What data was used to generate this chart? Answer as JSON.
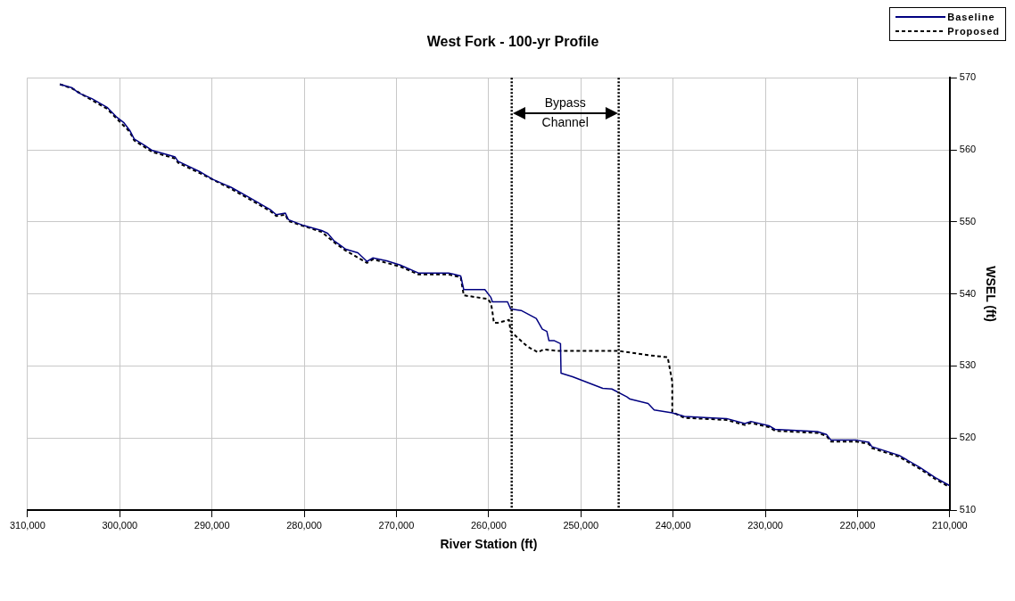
{
  "chart_data": {
    "type": "line",
    "title": "West Fork - 100-yr Profile",
    "xlabel": "River Station (ft)",
    "ylabel": "WSEL (ft)",
    "xlim": [
      310000,
      210000
    ],
    "xticks": [
      {
        "value": 310000,
        "label": "310,000"
      },
      {
        "value": 300000,
        "label": "300,000"
      },
      {
        "value": 290000,
        "label": "290,000"
      },
      {
        "value": 280000,
        "label": "280,000"
      },
      {
        "value": 270000,
        "label": "270,000"
      },
      {
        "value": 260000,
        "label": "260,000"
      },
      {
        "value": 250000,
        "label": "250,000"
      },
      {
        "value": 240000,
        "label": "240,000"
      },
      {
        "value": 230000,
        "label": "230,000"
      },
      {
        "value": 220000,
        "label": "220,000"
      },
      {
        "value": 210000,
        "label": "210,000"
      }
    ],
    "ylim": [
      510,
      570
    ],
    "yticks": [
      510,
      520,
      530,
      540,
      550,
      560,
      570
    ],
    "grid": true,
    "legend": "top right",
    "marker": "none",
    "series": [
      {
        "name": "Baseline",
        "color": "#000080",
        "line_style": "solid",
        "x": [
          306500,
          305150,
          304490,
          303020,
          301380,
          300390,
          299580,
          298920,
          298430,
          297290,
          296460,
          294490,
          294000,
          293680,
          291220,
          289910,
          287940,
          285970,
          283680,
          283030,
          282040,
          281710,
          280080,
          278110,
          277450,
          276790,
          276140,
          275490,
          274180,
          273190,
          272540,
          271060,
          269590,
          267620,
          264350,
          263030,
          262700,
          261550,
          260410,
          259750,
          259590,
          257950,
          257620,
          256480,
          254840,
          254180,
          253690,
          253460,
          252870,
          252210,
          252150,
          250900,
          247630,
          246640,
          245000,
          244680,
          242710,
          242050,
          240090,
          238780,
          236150,
          234190,
          232220,
          231560,
          229600,
          228950,
          224360,
          223370,
          222880,
          220100,
          218780,
          218450,
          215500,
          213210,
          211570,
          210030
        ],
        "values": [
          569.1,
          568.6,
          567.9,
          567.1,
          565.9,
          564.6,
          563.8,
          562.7,
          561.5,
          560.6,
          559.9,
          559.2,
          559.0,
          558.4,
          556.9,
          555.9,
          554.8,
          553.4,
          551.7,
          551.0,
          551.2,
          550.3,
          549.5,
          548.8,
          548.4,
          547.4,
          546.8,
          546.2,
          545.7,
          544.5,
          545.0,
          544.6,
          544.0,
          542.9,
          542.9,
          542.5,
          540.6,
          540.6,
          540.6,
          539.5,
          538.9,
          538.9,
          537.9,
          537.7,
          536.6,
          535.1,
          534.8,
          533.5,
          533.5,
          533.1,
          529.0,
          528.5,
          526.9,
          526.8,
          525.7,
          525.4,
          524.8,
          523.9,
          523.5,
          523.0,
          522.8,
          522.7,
          522.0,
          522.3,
          521.7,
          521.2,
          520.9,
          520.5,
          519.7,
          519.7,
          519.4,
          518.8,
          517.6,
          515.9,
          514.5,
          513.4
        ]
      },
      {
        "name": "Proposed",
        "color": "#000000",
        "line_style": "dashed",
        "x": [
          306500,
          305150,
          303020,
          301380,
          300390,
          298920,
          298430,
          296460,
          294000,
          293680,
          291220,
          287940,
          283680,
          283030,
          282040,
          281710,
          278110,
          276790,
          275490,
          273190,
          272540,
          269590,
          267620,
          264350,
          263030,
          262700,
          260080,
          259750,
          259590,
          259430,
          258970,
          257790,
          257620,
          255800,
          254670,
          254020,
          252550,
          245990,
          242710,
          240580,
          240410,
          240090,
          240090,
          239430,
          238780,
          234190,
          232220,
          231560,
          229600,
          228950,
          224360,
          223370,
          222880,
          220100,
          218780,
          218450,
          215500,
          213210,
          211570,
          210030
        ],
        "values": [
          569.1,
          568.5,
          566.9,
          565.7,
          564.4,
          562.5,
          561.3,
          559.7,
          558.8,
          558.2,
          556.7,
          554.6,
          551.5,
          550.8,
          551.0,
          550.1,
          548.6,
          547.2,
          546.0,
          544.3,
          544.8,
          543.8,
          542.7,
          542.7,
          542.3,
          539.8,
          539.3,
          538.7,
          537.5,
          536.0,
          536.0,
          536.4,
          534.8,
          532.7,
          531.9,
          532.3,
          532.1,
          532.1,
          531.5,
          531.2,
          530.0,
          527.8,
          523.6,
          523.2,
          522.8,
          522.5,
          521.8,
          522.1,
          521.5,
          521.0,
          520.7,
          520.3,
          519.5,
          519.5,
          519.2,
          518.6,
          517.4,
          515.7,
          514.3,
          513.2
        ]
      }
    ],
    "ref_lines": [
      {
        "axis": "x",
        "value": 257500,
        "color": "#000000",
        "line_style": "dotted"
      },
      {
        "axis": "x",
        "value": 245900,
        "color": "#000000",
        "line_style": "dotted"
      }
    ],
    "annotations": [
      "Bypass\nChannel"
    ]
  }
}
